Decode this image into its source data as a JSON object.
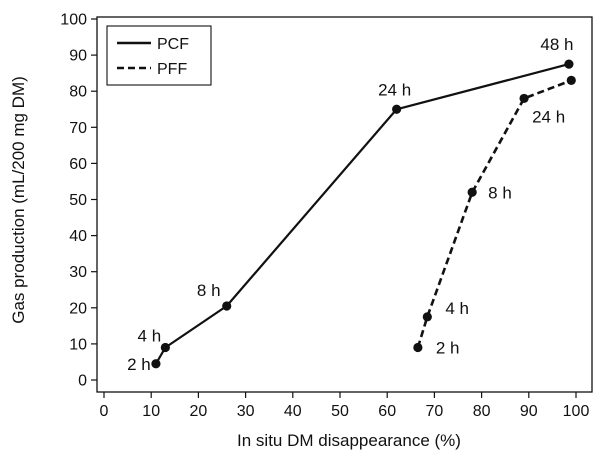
{
  "chart_data": {
    "type": "line",
    "xlabel": "In situ DM disappearance (%)",
    "ylabel": "Gas production (mL/200 mg DM)",
    "xlim": [
      0,
      100
    ],
    "ylim": [
      0,
      100
    ],
    "x_ticks": [
      "0",
      "10",
      "20",
      "30",
      "40",
      "50",
      "60",
      "70",
      "80",
      "90",
      "100"
    ],
    "y_ticks": [
      "0",
      "10",
      "20",
      "30",
      "40",
      "50",
      "60",
      "70",
      "80",
      "90",
      "100"
    ],
    "grid": false,
    "legend_position": "top-left",
    "colors": {
      "line": "#111111",
      "axis": "#111111"
    },
    "series": [
      {
        "name": "PCF",
        "line_style": "solid",
        "points": [
          {
            "x": 11,
            "y": 4.5,
            "label": "2 h"
          },
          {
            "x": 13,
            "y": 9,
            "label": "4 h"
          },
          {
            "x": 26,
            "y": 20.5,
            "label": "8 h"
          },
          {
            "x": 62,
            "y": 75,
            "label": "24 h"
          },
          {
            "x": 98.5,
            "y": 87.5,
            "label": "48 h"
          }
        ]
      },
      {
        "name": "PFF",
        "line_style": "dashed",
        "points": [
          {
            "x": 66.5,
            "y": 9,
            "label": "2 h"
          },
          {
            "x": 68.5,
            "y": 17.5,
            "label": "4 h"
          },
          {
            "x": 78,
            "y": 52,
            "label": "8 h"
          },
          {
            "x": 89,
            "y": 78,
            "label": "24 h"
          },
          {
            "x": 99,
            "y": 83,
            "label": ""
          }
        ]
      }
    ]
  }
}
